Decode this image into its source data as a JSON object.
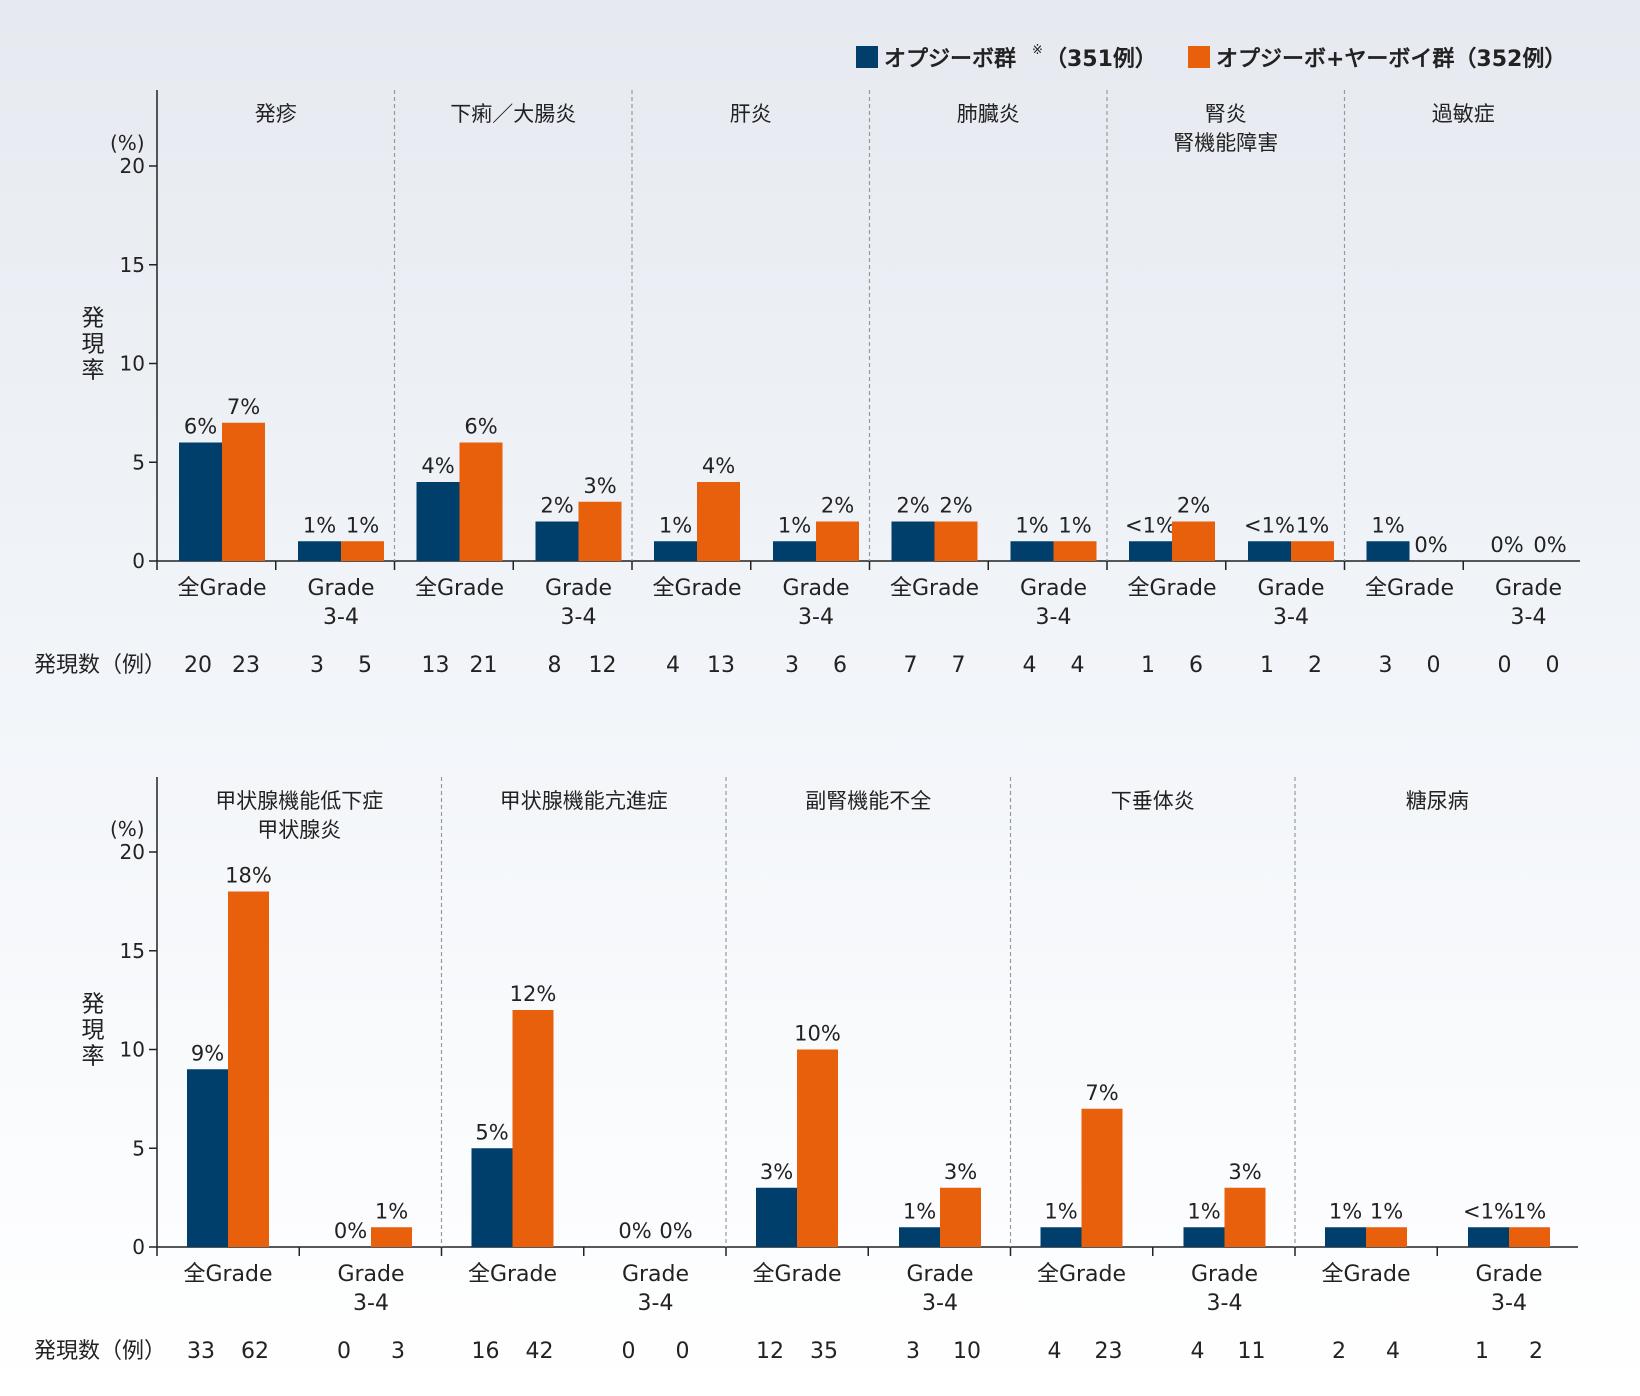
{
  "legend": {
    "series1": "オプジーボ群",
    "series1_mark": "※",
    "series1_n": "（351例）",
    "series2": "オプジーボ+ヤーボイ群（352例）",
    "series1_color": "#003f6b",
    "series2_color": "#e85f0c"
  },
  "chart_data": [
    {
      "type": "bar",
      "unit": "(%)",
      "ylabel": "発現率",
      "count_label": "発現数（例）",
      "ylim": [
        0,
        20
      ],
      "yticks": [
        0,
        5,
        10,
        15,
        20
      ],
      "groups": [
        {
          "title": [
            "発疹"
          ],
          "subgroups": [
            {
              "label": [
                "全Grade"
              ],
              "values": [
                6,
                7
              ],
              "labels": [
                "6%",
                "7%"
              ],
              "counts": [
                "20",
                "23"
              ]
            },
            {
              "label": [
                "Grade",
                "3-4"
              ],
              "values": [
                1,
                1
              ],
              "labels": [
                "1%",
                "1%"
              ],
              "counts": [
                "3",
                "5"
              ]
            }
          ]
        },
        {
          "title": [
            "下痢／大腸炎"
          ],
          "subgroups": [
            {
              "label": [
                "全Grade"
              ],
              "values": [
                4,
                6
              ],
              "labels": [
                "4%",
                "6%"
              ],
              "counts": [
                "13",
                "21"
              ]
            },
            {
              "label": [
                "Grade",
                "3-4"
              ],
              "values": [
                2,
                3
              ],
              "labels": [
                "2%",
                "3%"
              ],
              "counts": [
                "8",
                "12"
              ]
            }
          ]
        },
        {
          "title": [
            "肝炎"
          ],
          "subgroups": [
            {
              "label": [
                "全Grade"
              ],
              "values": [
                1,
                4
              ],
              "labels": [
                "1%",
                "4%"
              ],
              "counts": [
                "4",
                "13"
              ]
            },
            {
              "label": [
                "Grade",
                "3-4"
              ],
              "values": [
                1,
                2
              ],
              "labels": [
                "1%",
                "2%"
              ],
              "counts": [
                "3",
                "6"
              ]
            }
          ]
        },
        {
          "title": [
            "肺臓炎"
          ],
          "subgroups": [
            {
              "label": [
                "全Grade"
              ],
              "values": [
                2,
                2
              ],
              "labels": [
                "2%",
                "2%"
              ],
              "counts": [
                "7",
                "7"
              ]
            },
            {
              "label": [
                "Grade",
                "3-4"
              ],
              "values": [
                1,
                1
              ],
              "labels": [
                "1%",
                "1%"
              ],
              "counts": [
                "4",
                "4"
              ]
            }
          ]
        },
        {
          "title": [
            "腎炎",
            "腎機能障害"
          ],
          "subgroups": [
            {
              "label": [
                "全Grade"
              ],
              "values": [
                1,
                2
              ],
              "labels": [
                "<1%",
                "2%"
              ],
              "counts": [
                "1",
                "6"
              ]
            },
            {
              "label": [
                "Grade",
                "3-4"
              ],
              "values": [
                1,
                1
              ],
              "labels": [
                "<1%",
                "1%"
              ],
              "counts": [
                "1",
                "2"
              ]
            }
          ]
        },
        {
          "title": [
            "過敏症"
          ],
          "subgroups": [
            {
              "label": [
                "全Grade"
              ],
              "values": [
                1,
                0
              ],
              "labels": [
                "1%",
                "0%"
              ],
              "counts": [
                "3",
                "0"
              ]
            },
            {
              "label": [
                "Grade",
                "3-4"
              ],
              "values": [
                0,
                0
              ],
              "labels": [
                "0%",
                "0%"
              ],
              "counts": [
                "0",
                "0"
              ]
            }
          ]
        }
      ]
    },
    {
      "type": "bar",
      "unit": "(%)",
      "ylabel": "発現率",
      "count_label": "発現数（例）",
      "ylim": [
        0,
        20
      ],
      "yticks": [
        0,
        5,
        10,
        15,
        20
      ],
      "groups": [
        {
          "title": [
            "甲状腺機能低下症",
            "甲状腺炎"
          ],
          "subgroups": [
            {
              "label": [
                "全Grade"
              ],
              "values": [
                9,
                18
              ],
              "labels": [
                "9%",
                "18%"
              ],
              "counts": [
                "33",
                "62"
              ]
            },
            {
              "label": [
                "Grade",
                "3-4"
              ],
              "values": [
                0,
                1
              ],
              "labels": [
                "0%",
                "1%"
              ],
              "counts": [
                "0",
                "3"
              ]
            }
          ]
        },
        {
          "title": [
            "甲状腺機能亢進症"
          ],
          "subgroups": [
            {
              "label": [
                "全Grade"
              ],
              "values": [
                5,
                12
              ],
              "labels": [
                "5%",
                "12%"
              ],
              "counts": [
                "16",
                "42"
              ]
            },
            {
              "label": [
                "Grade",
                "3-4"
              ],
              "values": [
                0,
                0
              ],
              "labels": [
                "0%",
                "0%"
              ],
              "counts": [
                "0",
                "0"
              ]
            }
          ]
        },
        {
          "title": [
            "副腎機能不全"
          ],
          "subgroups": [
            {
              "label": [
                "全Grade"
              ],
              "values": [
                3,
                10
              ],
              "labels": [
                "3%",
                "10%"
              ],
              "counts": [
                "12",
                "35"
              ]
            },
            {
              "label": [
                "Grade",
                "3-4"
              ],
              "values": [
                1,
                3
              ],
              "labels": [
                "1%",
                "3%"
              ],
              "counts": [
                "3",
                "10"
              ]
            }
          ]
        },
        {
          "title": [
            "下垂体炎"
          ],
          "subgroups": [
            {
              "label": [
                "全Grade"
              ],
              "values": [
                1,
                7
              ],
              "labels": [
                "1%",
                "7%"
              ],
              "counts": [
                "4",
                "23"
              ]
            },
            {
              "label": [
                "Grade",
                "3-4"
              ],
              "values": [
                1,
                3
              ],
              "labels": [
                "1%",
                "3%"
              ],
              "counts": [
                "4",
                "11"
              ]
            }
          ]
        },
        {
          "title": [
            "糖尿病"
          ],
          "subgroups": [
            {
              "label": [
                "全Grade"
              ],
              "values": [
                1,
                1
              ],
              "labels": [
                "1%",
                "1%"
              ],
              "counts": [
                "2",
                "4"
              ]
            },
            {
              "label": [
                "Grade",
                "3-4"
              ],
              "values": [
                1,
                1
              ],
              "labels": [
                "<1%",
                "1%"
              ],
              "counts": [
                "1",
                "2"
              ]
            }
          ]
        }
      ]
    }
  ]
}
